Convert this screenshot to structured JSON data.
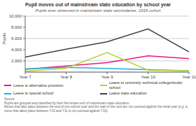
{
  "chart_data": {
    "type": "line",
    "title": "Pupil moves out of mainstream state education by school year",
    "subtitle": "Pupils ever observed in mainstream state secondaries, 2018 cohort",
    "note": "Source:\nPupils are grouped and classified by their first known exit of mainstream state education.\nMoves that take place between the end of one school year and the start of the next are not counted against the initial year (e.g. a move that takes place between Y10 and Y11 is not counted against Y10).",
    "categories": [
      "Year 7",
      "Year 8",
      "Year 9",
      "Year 10",
      "Year 11"
    ],
    "series": [
      {
        "name": "Leave to alternative provision",
        "color": "#e8197d",
        "values": [
          500,
          1100,
          1700,
          2900,
          2400
        ]
      },
      {
        "name": "Leave to special school",
        "color": "#29abe2",
        "values": [
          550,
          850,
          650,
          450,
          250
        ]
      },
      {
        "name": "Leave to university technical college/studio school",
        "color": "#b5d334",
        "values": [
          150,
          700,
          3500,
          350,
          250
        ]
      },
      {
        "name": "Leave state education",
        "color": "#414042",
        "values": [
          2700,
          4100,
          5400,
          7700,
          3600
        ]
      }
    ],
    "ylim": [
      0,
      10000
    ],
    "yticks": [
      {
        "value": 2000,
        "label": "2,000"
      },
      {
        "value": 4000,
        "label": "4,000"
      },
      {
        "value": 6000,
        "label": "6,000"
      },
      {
        "value": 8000,
        "label": "8,000"
      },
      {
        "value": 10000,
        "label": "10,000"
      }
    ],
    "ylabel": "Pupils",
    "grid": true,
    "legend": "bottom"
  }
}
